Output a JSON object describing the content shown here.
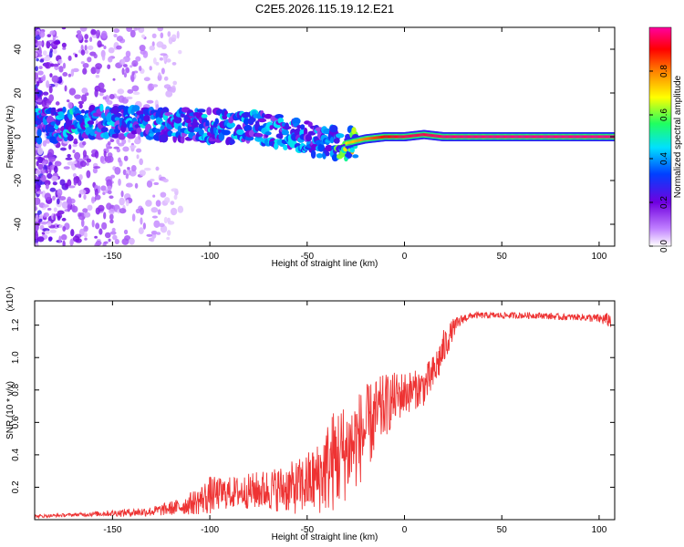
{
  "title": "C2E5.2026.115.19.12.E21",
  "chart_data": [
    {
      "type": "heatmap",
      "xlabel": "Height of straight line (km)",
      "ylabel": "Frequency (Hz)",
      "xlim": [
        -190,
        108
      ],
      "ylim": [
        -50,
        50
      ],
      "xticks": [
        -150,
        -100,
        -50,
        0,
        50,
        100
      ],
      "xtick_labels": [
        "-150",
        "-100",
        "-50",
        "0",
        "50",
        "100"
      ],
      "yticks": [
        -40,
        -20,
        0,
        20,
        40
      ],
      "ytick_labels": [
        "-40",
        "-20",
        "0",
        "20",
        "40"
      ],
      "colorbar": {
        "label": "Normalized spectral amplitude",
        "range": [
          0,
          1
        ],
        "ticks": [
          0.0,
          0.2,
          0.4,
          0.6,
          0.8
        ],
        "tick_labels": [
          "0.0",
          "0.2",
          "0.4",
          "0.6",
          "0.8"
        ],
        "colors": [
          "#ffffff",
          "#c080ff",
          "#7000e0",
          "#0040ff",
          "#00e0ff",
          "#20ff60",
          "#ffff00",
          "#ff8000",
          "#ff0000",
          "#ff00a0"
        ]
      },
      "ridge": [
        {
          "x": -190,
          "freq": 5,
          "amp": 0.45
        },
        {
          "x": -170,
          "freq": 6,
          "amp": 0.5
        },
        {
          "x": -150,
          "freq": 7,
          "amp": 0.45
        },
        {
          "x": -125,
          "freq": 6,
          "amp": 0.45
        },
        {
          "x": -100,
          "freq": 5,
          "amp": 0.45
        },
        {
          "x": -75,
          "freq": 4,
          "amp": 0.45
        },
        {
          "x": -55,
          "freq": 1,
          "amp": 0.45
        },
        {
          "x": -40,
          "freq": -3,
          "amp": 0.4
        },
        {
          "x": -30,
          "freq": -3,
          "amp": 0.7
        },
        {
          "x": -20,
          "freq": -1,
          "amp": 0.8
        },
        {
          "x": -10,
          "freq": 0,
          "amp": 0.9
        },
        {
          "x": 0,
          "freq": 0,
          "amp": 0.95
        },
        {
          "x": 10,
          "freq": 1,
          "amp": 0.95
        },
        {
          "x": 20,
          "freq": 0,
          "amp": 0.97
        },
        {
          "x": 50,
          "freq": 0,
          "amp": 0.98
        },
        {
          "x": 108,
          "freq": 0,
          "amp": 0.98
        }
      ]
    },
    {
      "type": "line",
      "xlabel": "Height of straight line (km)",
      "ylabel": "SNR (10 * v/v)",
      "y_multiplier_label": "(x10⁴)",
      "xlim": [
        -190,
        108
      ],
      "ylim": [
        0,
        1.35
      ],
      "xticks": [
        -150,
        -100,
        -50,
        0,
        50,
        100
      ],
      "xtick_labels": [
        "-150",
        "-100",
        "-50",
        "0",
        "50",
        "100"
      ],
      "yticks": [
        0.2,
        0.4,
        0.6,
        0.8,
        1.0,
        1.2
      ],
      "ytick_labels": [
        "0.2",
        "0.4",
        "0.6",
        "0.8",
        "1.0",
        "1.2"
      ],
      "color": "#ee3333",
      "series": [
        {
          "name": "SNR",
          "x": [
            -190,
            -170,
            -150,
            -130,
            -115,
            -105,
            -100,
            -95,
            -85,
            -75,
            -65,
            -55,
            -45,
            -40,
            -35,
            -30,
            -25,
            -20,
            -15,
            -10,
            -5,
            0,
            5,
            10,
            15,
            20,
            25,
            30,
            35,
            40,
            50,
            60,
            70,
            80,
            90,
            100,
            106
          ],
          "y": [
            0.02,
            0.03,
            0.04,
            0.05,
            0.08,
            0.12,
            0.15,
            0.16,
            0.17,
            0.18,
            0.19,
            0.2,
            0.25,
            0.32,
            0.38,
            0.42,
            0.48,
            0.55,
            0.63,
            0.7,
            0.75,
            0.78,
            0.8,
            0.82,
            0.9,
            1.05,
            1.18,
            1.24,
            1.26,
            1.26,
            1.26,
            1.26,
            1.26,
            1.25,
            1.25,
            1.24,
            1.23
          ],
          "noise": [
            0.01,
            0.01,
            0.02,
            0.03,
            0.05,
            0.09,
            0.12,
            0.1,
            0.1,
            0.12,
            0.14,
            0.17,
            0.22,
            0.28,
            0.34,
            0.3,
            0.3,
            0.28,
            0.24,
            0.2,
            0.16,
            0.14,
            0.12,
            0.12,
            0.12,
            0.12,
            0.06,
            0.03,
            0.02,
            0.02,
            0.02,
            0.02,
            0.02,
            0.02,
            0.02,
            0.03,
            0.05
          ]
        }
      ]
    }
  ]
}
